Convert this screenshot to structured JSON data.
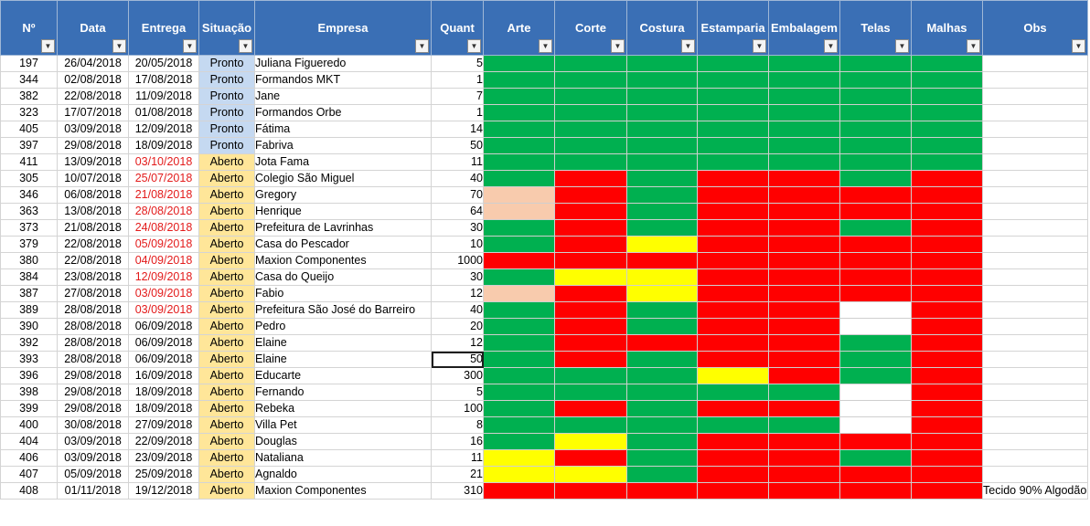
{
  "columns": [
    {
      "key": "num",
      "label": "Nº"
    },
    {
      "key": "data",
      "label": "Data"
    },
    {
      "key": "entrega",
      "label": "Entrega"
    },
    {
      "key": "situacao",
      "label": "Situação"
    },
    {
      "key": "empresa",
      "label": "Empresa"
    },
    {
      "key": "quant",
      "label": "Quant"
    },
    {
      "key": "arte",
      "label": "Arte"
    },
    {
      "key": "corte",
      "label": "Corte"
    },
    {
      "key": "costura",
      "label": "Costura"
    },
    {
      "key": "estamparia",
      "label": "Estamparia"
    },
    {
      "key": "embalagem",
      "label": "Embalagem"
    },
    {
      "key": "telas",
      "label": "Telas"
    },
    {
      "key": "malhas",
      "label": "Malhas"
    },
    {
      "key": "obs",
      "label": "Obs"
    }
  ],
  "filter_icon": "filter-dropdown-icon",
  "colors": {
    "green": "#00b050",
    "red": "#ff0000",
    "yellow": "#ffff00",
    "peach": "#f8cbad",
    "white": "#ffffff",
    "pronto": "#c5d9f1",
    "aberto": "#ffe699",
    "header": "#3a6fb5",
    "late_text": "#e31b1b"
  },
  "selected_cell": {
    "row": 18,
    "column": "quant"
  },
  "rows": [
    {
      "num": "197",
      "data": "26/04/2018",
      "entrega": "20/05/2018",
      "late": false,
      "situacao": "Pronto",
      "empresa": "Juliana Figueredo",
      "quant": "5",
      "stages": [
        "green",
        "green",
        "green",
        "green",
        "green",
        "green",
        "green"
      ],
      "obs": ""
    },
    {
      "num": "344",
      "data": "02/08/2018",
      "entrega": "17/08/2018",
      "late": false,
      "situacao": "Pronto",
      "empresa": "Formandos MKT",
      "quant": "1",
      "stages": [
        "green",
        "green",
        "green",
        "green",
        "green",
        "green",
        "green"
      ],
      "obs": ""
    },
    {
      "num": "382",
      "data": "22/08/2018",
      "entrega": "11/09/2018",
      "late": false,
      "situacao": "Pronto",
      "empresa": "Jane",
      "quant": "7",
      "stages": [
        "green",
        "green",
        "green",
        "green",
        "green",
        "green",
        "green"
      ],
      "obs": ""
    },
    {
      "num": "323",
      "data": "17/07/2018",
      "entrega": "01/08/2018",
      "late": false,
      "situacao": "Pronto",
      "empresa": "Formandos Orbe",
      "quant": "1",
      "stages": [
        "green",
        "green",
        "green",
        "green",
        "green",
        "green",
        "green"
      ],
      "obs": ""
    },
    {
      "num": "405",
      "data": "03/09/2018",
      "entrega": "12/09/2018",
      "late": false,
      "situacao": "Pronto",
      "empresa": "Fátima",
      "quant": "14",
      "stages": [
        "green",
        "green",
        "green",
        "green",
        "green",
        "green",
        "green"
      ],
      "obs": ""
    },
    {
      "num": "397",
      "data": "29/08/2018",
      "entrega": "18/09/2018",
      "late": false,
      "situacao": "Pronto",
      "empresa": "Fabriva",
      "quant": "50",
      "stages": [
        "green",
        "green",
        "green",
        "green",
        "green",
        "green",
        "green"
      ],
      "obs": ""
    },
    {
      "num": "411",
      "data": "13/09/2018",
      "entrega": "03/10/2018",
      "late": true,
      "situacao": "Aberto",
      "empresa": "Jota Fama",
      "quant": "11",
      "stages": [
        "green",
        "green",
        "green",
        "green",
        "green",
        "green",
        "green"
      ],
      "obs": ""
    },
    {
      "num": "305",
      "data": "10/07/2018",
      "entrega": "25/07/2018",
      "late": true,
      "situacao": "Aberto",
      "empresa": "Colegio São Miguel",
      "quant": "40",
      "stages": [
        "green",
        "red",
        "green",
        "red",
        "red",
        "green",
        "red"
      ],
      "obs": ""
    },
    {
      "num": "346",
      "data": "06/08/2018",
      "entrega": "21/08/2018",
      "late": true,
      "situacao": "Aberto",
      "empresa": "Gregory",
      "quant": "70",
      "stages": [
        "peach",
        "red",
        "green",
        "red",
        "red",
        "red",
        "red"
      ],
      "obs": ""
    },
    {
      "num": "363",
      "data": "13/08/2018",
      "entrega": "28/08/2018",
      "late": true,
      "situacao": "Aberto",
      "empresa": "Henrique",
      "quant": "64",
      "stages": [
        "peach",
        "red",
        "green",
        "red",
        "red",
        "red",
        "red"
      ],
      "obs": ""
    },
    {
      "num": "373",
      "data": "21/08/2018",
      "entrega": "24/08/2018",
      "late": true,
      "situacao": "Aberto",
      "empresa": "Prefeitura de Lavrinhas",
      "quant": "30",
      "stages": [
        "green",
        "red",
        "green",
        "red",
        "red",
        "green",
        "red"
      ],
      "obs": ""
    },
    {
      "num": "379",
      "data": "22/08/2018",
      "entrega": "05/09/2018",
      "late": true,
      "situacao": "Aberto",
      "empresa": "Casa do Pescador",
      "quant": "10",
      "stages": [
        "green",
        "red",
        "yellow",
        "red",
        "red",
        "red",
        "red"
      ],
      "obs": ""
    },
    {
      "num": "380",
      "data": "22/08/2018",
      "entrega": "04/09/2018",
      "late": true,
      "situacao": "Aberto",
      "empresa": "Maxion Componentes",
      "quant": "1000",
      "stages": [
        "red",
        "red",
        "red",
        "red",
        "red",
        "red",
        "red"
      ],
      "obs": ""
    },
    {
      "num": "384",
      "data": "23/08/2018",
      "entrega": "12/09/2018",
      "late": true,
      "situacao": "Aberto",
      "empresa": "Casa do Queijo",
      "quant": "30",
      "stages": [
        "green",
        "yellow",
        "yellow",
        "red",
        "red",
        "red",
        "red"
      ],
      "obs": ""
    },
    {
      "num": "387",
      "data": "27/08/2018",
      "entrega": "03/09/2018",
      "late": true,
      "situacao": "Aberto",
      "empresa": "Fabio",
      "quant": "12",
      "stages": [
        "peach",
        "red",
        "yellow",
        "red",
        "red",
        "red",
        "red"
      ],
      "obs": ""
    },
    {
      "num": "389",
      "data": "28/08/2018",
      "entrega": "03/09/2018",
      "late": true,
      "situacao": "Aberto",
      "empresa": "Prefeitura São José do Barreiro",
      "quant": "40",
      "stages": [
        "green",
        "red",
        "green",
        "red",
        "red",
        "white",
        "red"
      ],
      "obs": ""
    },
    {
      "num": "390",
      "data": "28/08/2018",
      "entrega": "06/09/2018",
      "late": false,
      "situacao": "Aberto",
      "empresa": "Pedro",
      "quant": "20",
      "stages": [
        "green",
        "red",
        "green",
        "red",
        "red",
        "white",
        "red"
      ],
      "obs": ""
    },
    {
      "num": "392",
      "data": "28/08/2018",
      "entrega": "06/09/2018",
      "late": false,
      "situacao": "Aberto",
      "empresa": "Elaine",
      "quant": "12",
      "stages": [
        "green",
        "red",
        "red",
        "red",
        "red",
        "green",
        "red"
      ],
      "obs": ""
    },
    {
      "num": "393",
      "data": "28/08/2018",
      "entrega": "06/09/2018",
      "late": false,
      "situacao": "Aberto",
      "empresa": "Elaine",
      "quant": "50",
      "stages": [
        "green",
        "red",
        "green",
        "red",
        "red",
        "green",
        "red"
      ],
      "obs": ""
    },
    {
      "num": "396",
      "data": "29/08/2018",
      "entrega": "16/09/2018",
      "late": false,
      "situacao": "Aberto",
      "empresa": "Educarte",
      "quant": "300",
      "stages": [
        "green",
        "green",
        "green",
        "yellow",
        "red",
        "green",
        "red"
      ],
      "obs": ""
    },
    {
      "num": "398",
      "data": "29/08/2018",
      "entrega": "18/09/2018",
      "late": false,
      "situacao": "Aberto",
      "empresa": "Fernando",
      "quant": "5",
      "stages": [
        "green",
        "green",
        "green",
        "green",
        "green",
        "white",
        "red"
      ],
      "obs": ""
    },
    {
      "num": "399",
      "data": "29/08/2018",
      "entrega": "18/09/2018",
      "late": false,
      "situacao": "Aberto",
      "empresa": "Rebeka",
      "quant": "100",
      "stages": [
        "green",
        "red",
        "green",
        "red",
        "red",
        "white",
        "red"
      ],
      "obs": ""
    },
    {
      "num": "400",
      "data": "30/08/2018",
      "entrega": "27/09/2018",
      "late": false,
      "situacao": "Aberto",
      "empresa": "Villa Pet",
      "quant": "8",
      "stages": [
        "green",
        "green",
        "green",
        "green",
        "green",
        "white",
        "red"
      ],
      "obs": ""
    },
    {
      "num": "404",
      "data": "03/09/2018",
      "entrega": "22/09/2018",
      "late": false,
      "situacao": "Aberto",
      "empresa": "Douglas",
      "quant": "16",
      "stages": [
        "green",
        "yellow",
        "green",
        "red",
        "red",
        "red",
        "red"
      ],
      "obs": ""
    },
    {
      "num": "406",
      "data": "03/09/2018",
      "entrega": "23/09/2018",
      "late": false,
      "situacao": "Aberto",
      "empresa": "Nataliana",
      "quant": "11",
      "stages": [
        "yellow",
        "red",
        "green",
        "red",
        "red",
        "green",
        "red"
      ],
      "obs": ""
    },
    {
      "num": "407",
      "data": "05/09/2018",
      "entrega": "25/09/2018",
      "late": false,
      "situacao": "Aberto",
      "empresa": "Agnaldo",
      "quant": "21",
      "stages": [
        "yellow",
        "yellow",
        "green",
        "red",
        "red",
        "red",
        "red"
      ],
      "obs": ""
    },
    {
      "num": "408",
      "data": "01/11/2018",
      "entrega": "19/12/2018",
      "late": false,
      "situacao": "Aberto",
      "empresa": "Maxion Componentes",
      "quant": "310",
      "stages": [
        "red",
        "red",
        "red",
        "red",
        "red",
        "red",
        "red"
      ],
      "obs": "Tecido 90% Algodão"
    }
  ]
}
